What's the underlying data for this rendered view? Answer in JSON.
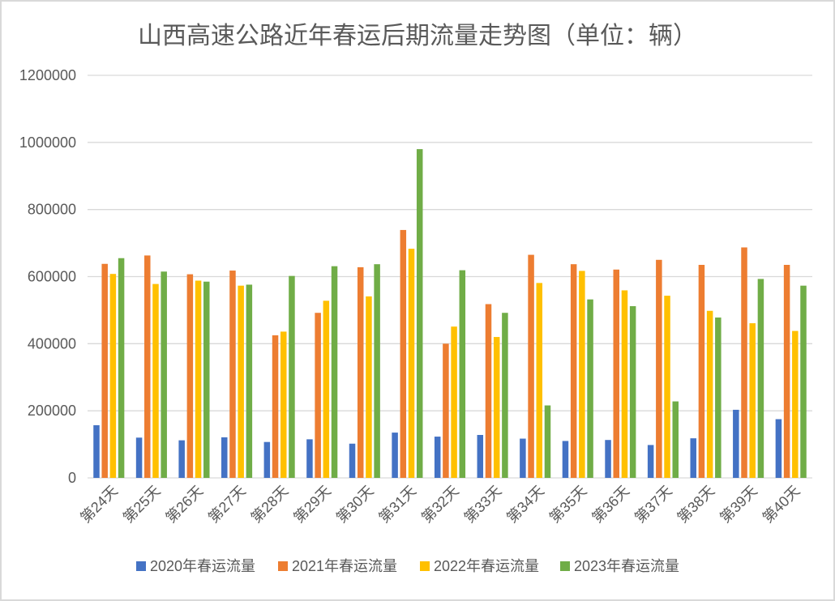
{
  "chart_data": {
    "type": "bar",
    "title": "山西高速公路近年春运后期流量走势图（单位：辆）",
    "xlabel": "",
    "ylabel": "",
    "ylim": [
      0,
      1200000
    ],
    "yticks": [
      "0",
      "200000",
      "400000",
      "600000",
      "800000",
      "1000000",
      "1200000"
    ],
    "grid": "horizontal",
    "legend_position": "bottom",
    "categories": [
      "第24天",
      "第25天",
      "第26天",
      "第27天",
      "第28天",
      "第29天",
      "第30天",
      "第31天",
      "第32天",
      "第33天",
      "第34天",
      "第35天",
      "第36天",
      "第37天",
      "第38天",
      "第39天",
      "第40天"
    ],
    "series": [
      {
        "name": "2020年春运流量",
        "color": "#4472c4",
        "values": [
          157000,
          120000,
          112000,
          121000,
          107000,
          115000,
          102000,
          135000,
          123000,
          128000,
          117000,
          110000,
          113000,
          98000,
          118000,
          203000,
          175000
        ]
      },
      {
        "name": "2021年春运流量",
        "color": "#ed7d31",
        "values": [
          638000,
          663000,
          607000,
          618000,
          425000,
          492000,
          628000,
          739000,
          400000,
          518000,
          665000,
          637000,
          621000,
          650000,
          635000,
          687000,
          635000
        ]
      },
      {
        "name": "2022年春运流量",
        "color": "#ffc000",
        "values": [
          608000,
          578000,
          588000,
          573000,
          436000,
          528000,
          541000,
          683000,
          451000,
          420000,
          581000,
          617000,
          559000,
          543000,
          498000,
          461000,
          438000
        ]
      },
      {
        "name": "2023年春运流量",
        "color": "#70ad47",
        "values": [
          655000,
          615000,
          585000,
          576000,
          602000,
          631000,
          637000,
          980000,
          619000,
          492000,
          216000,
          532000,
          512000,
          228000,
          478000,
          593000,
          573000
        ]
      }
    ]
  }
}
